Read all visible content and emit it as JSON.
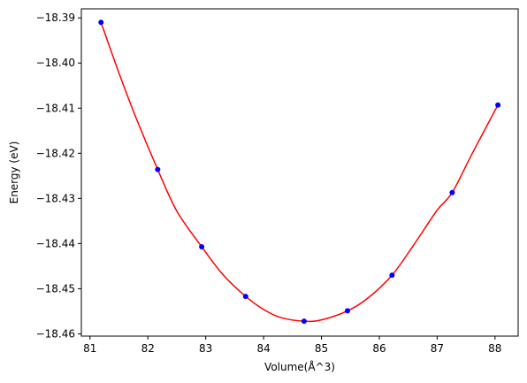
{
  "chart_data": {
    "type": "scatter",
    "title": "",
    "xlabel": "Volume(Å^3)",
    "ylabel": "Energy (eV)",
    "xlim": [
      80.85,
      88.4
    ],
    "ylim": [
      -18.4605,
      -18.388
    ],
    "grid": false,
    "legend": "none",
    "x_ticks": [
      {
        "value": 81,
        "label": "81"
      },
      {
        "value": 82,
        "label": "82"
      },
      {
        "value": 83,
        "label": "83"
      },
      {
        "value": 84,
        "label": "84"
      },
      {
        "value": 85,
        "label": "85"
      },
      {
        "value": 86,
        "label": "86"
      },
      {
        "value": 87,
        "label": "87"
      },
      {
        "value": 88,
        "label": "88"
      }
    ],
    "y_ticks": [
      {
        "value": -18.39,
        "label": "−18.39"
      },
      {
        "value": -18.4,
        "label": "−18.40"
      },
      {
        "value": -18.41,
        "label": "−18.41"
      },
      {
        "value": -18.42,
        "label": "−18.42"
      },
      {
        "value": -18.43,
        "label": "−18.43"
      },
      {
        "value": -18.44,
        "label": "−18.44"
      },
      {
        "value": -18.45,
        "label": "−18.45"
      },
      {
        "value": -18.46,
        "label": "−18.46"
      }
    ],
    "series": [
      {
        "kind": "points",
        "color": "#0000ff",
        "x": [
          81.19,
          82.17,
          82.93,
          83.69,
          84.7,
          85.45,
          86.22,
          87.26,
          88.05
        ],
        "y": [
          -18.391,
          -18.4236,
          -18.4407,
          -18.4517,
          -18.4572,
          -18.4549,
          -18.447,
          -18.4287,
          -18.4093
        ]
      },
      {
        "kind": "fit-curve",
        "color": "#ff0000",
        "x": [
          81.19,
          81.5,
          81.8,
          82.17,
          82.5,
          82.93,
          83.3,
          83.69,
          84.0,
          84.3,
          84.7,
          85.0,
          85.45,
          85.8,
          86.22,
          86.6,
          87.0,
          87.26,
          87.6,
          88.05
        ],
        "y": [
          -18.391,
          -18.4022,
          -18.4123,
          -18.4236,
          -18.4328,
          -18.4407,
          -18.4469,
          -18.4517,
          -18.4546,
          -18.4564,
          -18.4572,
          -18.4569,
          -18.4549,
          -18.4521,
          -18.447,
          -18.4402,
          -18.4326,
          -18.4287,
          -18.4202,
          -18.4093
        ]
      }
    ]
  }
}
